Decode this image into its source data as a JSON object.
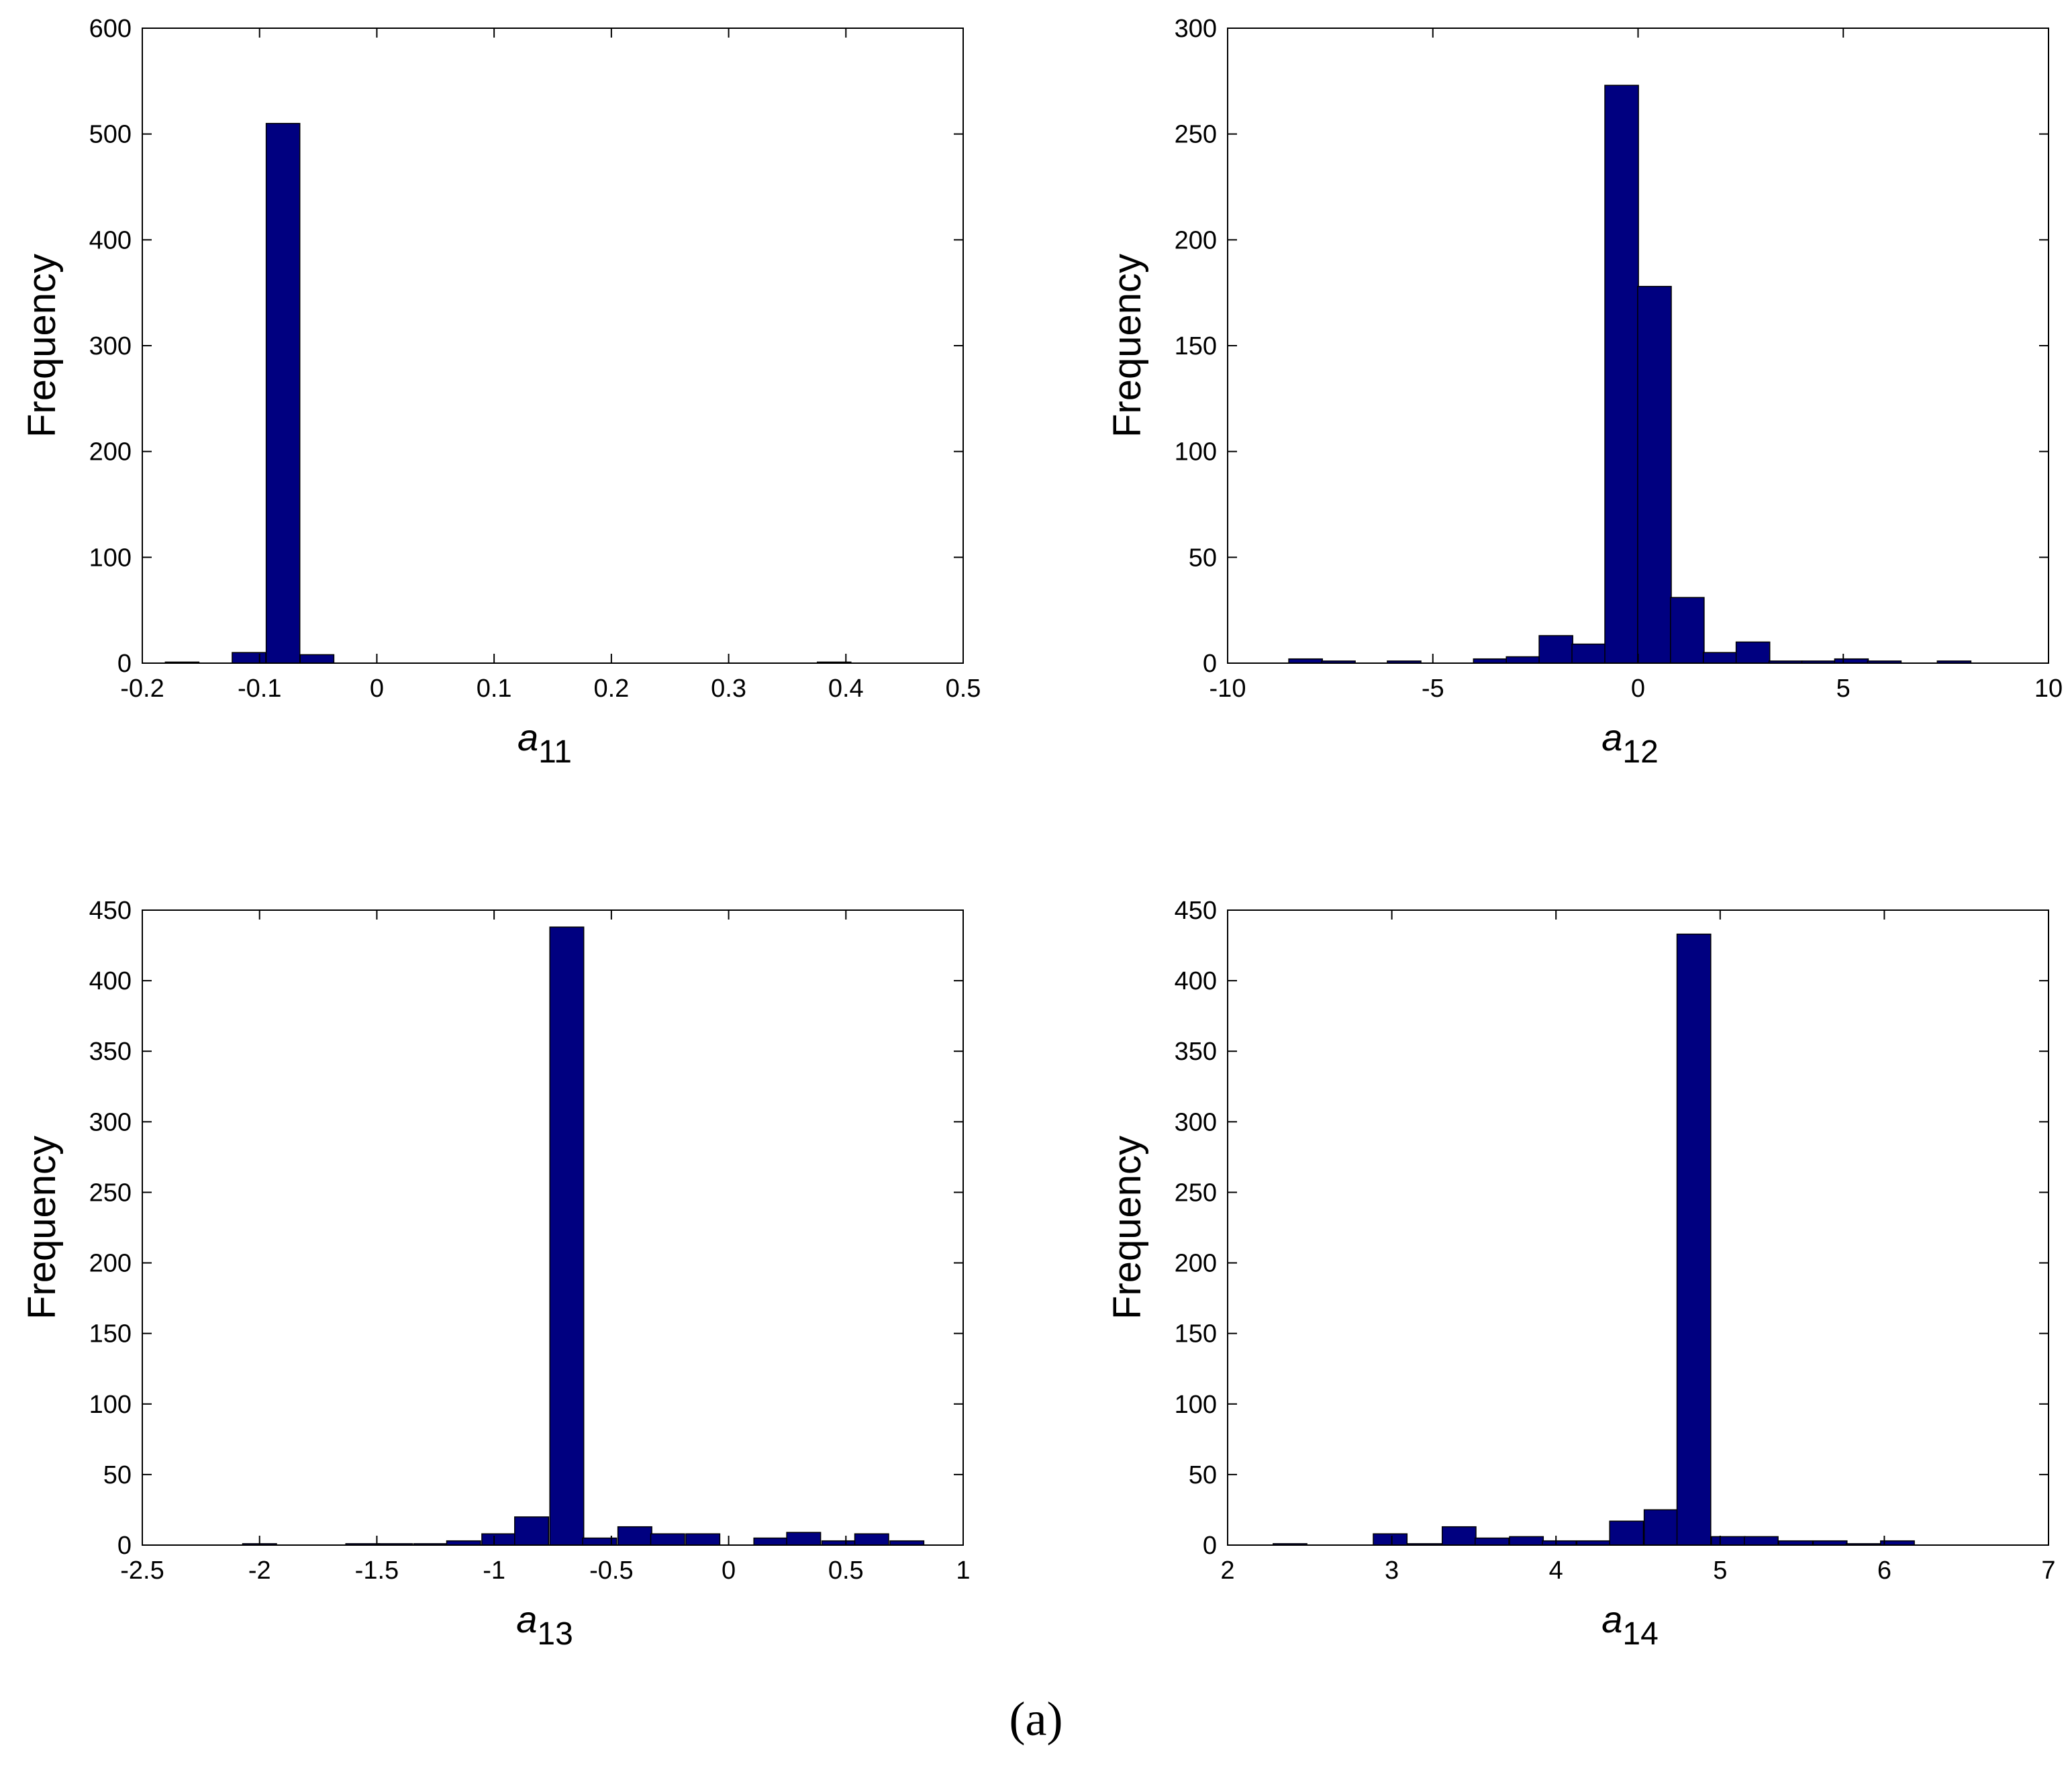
{
  "figure_caption": "(a)",
  "bar_color": "#000080",
  "chart_data": [
    {
      "type": "bar",
      "title": "",
      "xlabel": "a",
      "xlabel_sub": "11",
      "ylabel": "Frequency",
      "xlim": [
        -0.2,
        0.5
      ],
      "ylim": [
        0,
        600
      ],
      "xticks": [
        -0.2,
        -0.1,
        0,
        0.1,
        0.2,
        0.3,
        0.4,
        0.5
      ],
      "xtick_labels": [
        "-0.2",
        "-0.1",
        "0",
        "0.1",
        "0.2",
        "0.3",
        "0.4",
        "0.5"
      ],
      "yticks": [
        0,
        100,
        200,
        300,
        400,
        500,
        600
      ],
      "ytick_labels": [
        "0",
        "100",
        "200",
        "300",
        "400",
        "500",
        "600"
      ],
      "bin_width": 0.0287,
      "bin_centers": [
        -0.166,
        -0.109,
        -0.08,
        -0.051,
        0.39
      ],
      "values": [
        1,
        10,
        510,
        8,
        1
      ],
      "grid": false
    },
    {
      "type": "bar",
      "title": "",
      "xlabel": "a",
      "xlabel_sub": "12",
      "ylabel": "Frequency",
      "xlim": [
        -10,
        10
      ],
      "ylim": [
        0,
        300
      ],
      "xticks": [
        -10,
        -5,
        0,
        5,
        10
      ],
      "xtick_labels": [
        "-10",
        "-5",
        "0",
        "5",
        "10"
      ],
      "yticks": [
        0,
        50,
        100,
        150,
        200,
        250,
        300
      ],
      "ytick_labels": [
        "0",
        "50",
        "100",
        "150",
        "200",
        "250",
        "300"
      ],
      "bin_width": 0.82,
      "bin_centers": [
        -8.1,
        -7.3,
        -5.7,
        -3.6,
        -2.8,
        -2.0,
        -1.2,
        -0.4,
        0.4,
        1.2,
        2.0,
        2.8,
        3.6,
        4.4,
        5.2,
        6.0,
        7.7
      ],
      "values": [
        2,
        1,
        1,
        2,
        3,
        13,
        9,
        273,
        178,
        31,
        5,
        10,
        1,
        1,
        2,
        1,
        1
      ],
      "grid": false
    },
    {
      "type": "bar",
      "title": "",
      "xlabel": "a",
      "xlabel_sub": "13",
      "ylabel": "Frequency",
      "xlim": [
        -2.5,
        1
      ],
      "ylim": [
        0,
        450
      ],
      "xticks": [
        -2.5,
        -2,
        -1.5,
        -1,
        -0.5,
        0,
        0.5,
        1
      ],
      "xtick_labels": [
        "-2.5",
        "-2",
        "-1.5",
        "-1",
        "-0.5",
        "0",
        "0.5",
        "1"
      ],
      "yticks": [
        0,
        50,
        100,
        150,
        200,
        250,
        300,
        350,
        400,
        450
      ],
      "ytick_labels": [
        "0",
        "50",
        "100",
        "150",
        "200",
        "250",
        "300",
        "350",
        "400",
        "450"
      ],
      "bin_width": 0.1445,
      "bin_centers": [
        -2.0,
        -1.56,
        -1.42,
        -1.27,
        -1.13,
        -0.98,
        -0.84,
        -0.69,
        -0.55,
        -0.4,
        -0.26,
        -0.11,
        0.03,
        0.18,
        0.32,
        0.47,
        0.61,
        0.76
      ],
      "values": [
        1,
        1,
        1,
        1,
        3,
        8,
        20,
        438,
        5,
        13,
        8,
        8,
        0,
        5,
        9,
        3,
        8,
        3
      ],
      "grid": false
    },
    {
      "type": "bar",
      "title": "",
      "xlabel": "a",
      "xlabel_sub": "14",
      "ylabel": "Frequency",
      "xlim": [
        2,
        7
      ],
      "ylim": [
        0,
        450
      ],
      "xticks": [
        2,
        3,
        4,
        5,
        6,
        7
      ],
      "xtick_labels": [
        "2",
        "3",
        "4",
        "5",
        "6",
        "7"
      ],
      "yticks": [
        0,
        50,
        100,
        150,
        200,
        250,
        300,
        350,
        400,
        450
      ],
      "ytick_labels": [
        "0",
        "50",
        "100",
        "150",
        "200",
        "250",
        "300",
        "350",
        "400",
        "450"
      ],
      "bin_width": 0.2056,
      "bin_centers": [
        2.38,
        2.99,
        3.2,
        3.41,
        3.61,
        3.82,
        4.02,
        4.23,
        4.43,
        4.64,
        4.84,
        5.05,
        5.25,
        5.46,
        5.67,
        5.87,
        6.08
      ],
      "values": [
        1,
        8,
        1,
        13,
        5,
        6,
        3,
        3,
        17,
        25,
        433,
        6,
        6,
        3,
        3,
        1,
        3
      ],
      "grid": false
    }
  ]
}
